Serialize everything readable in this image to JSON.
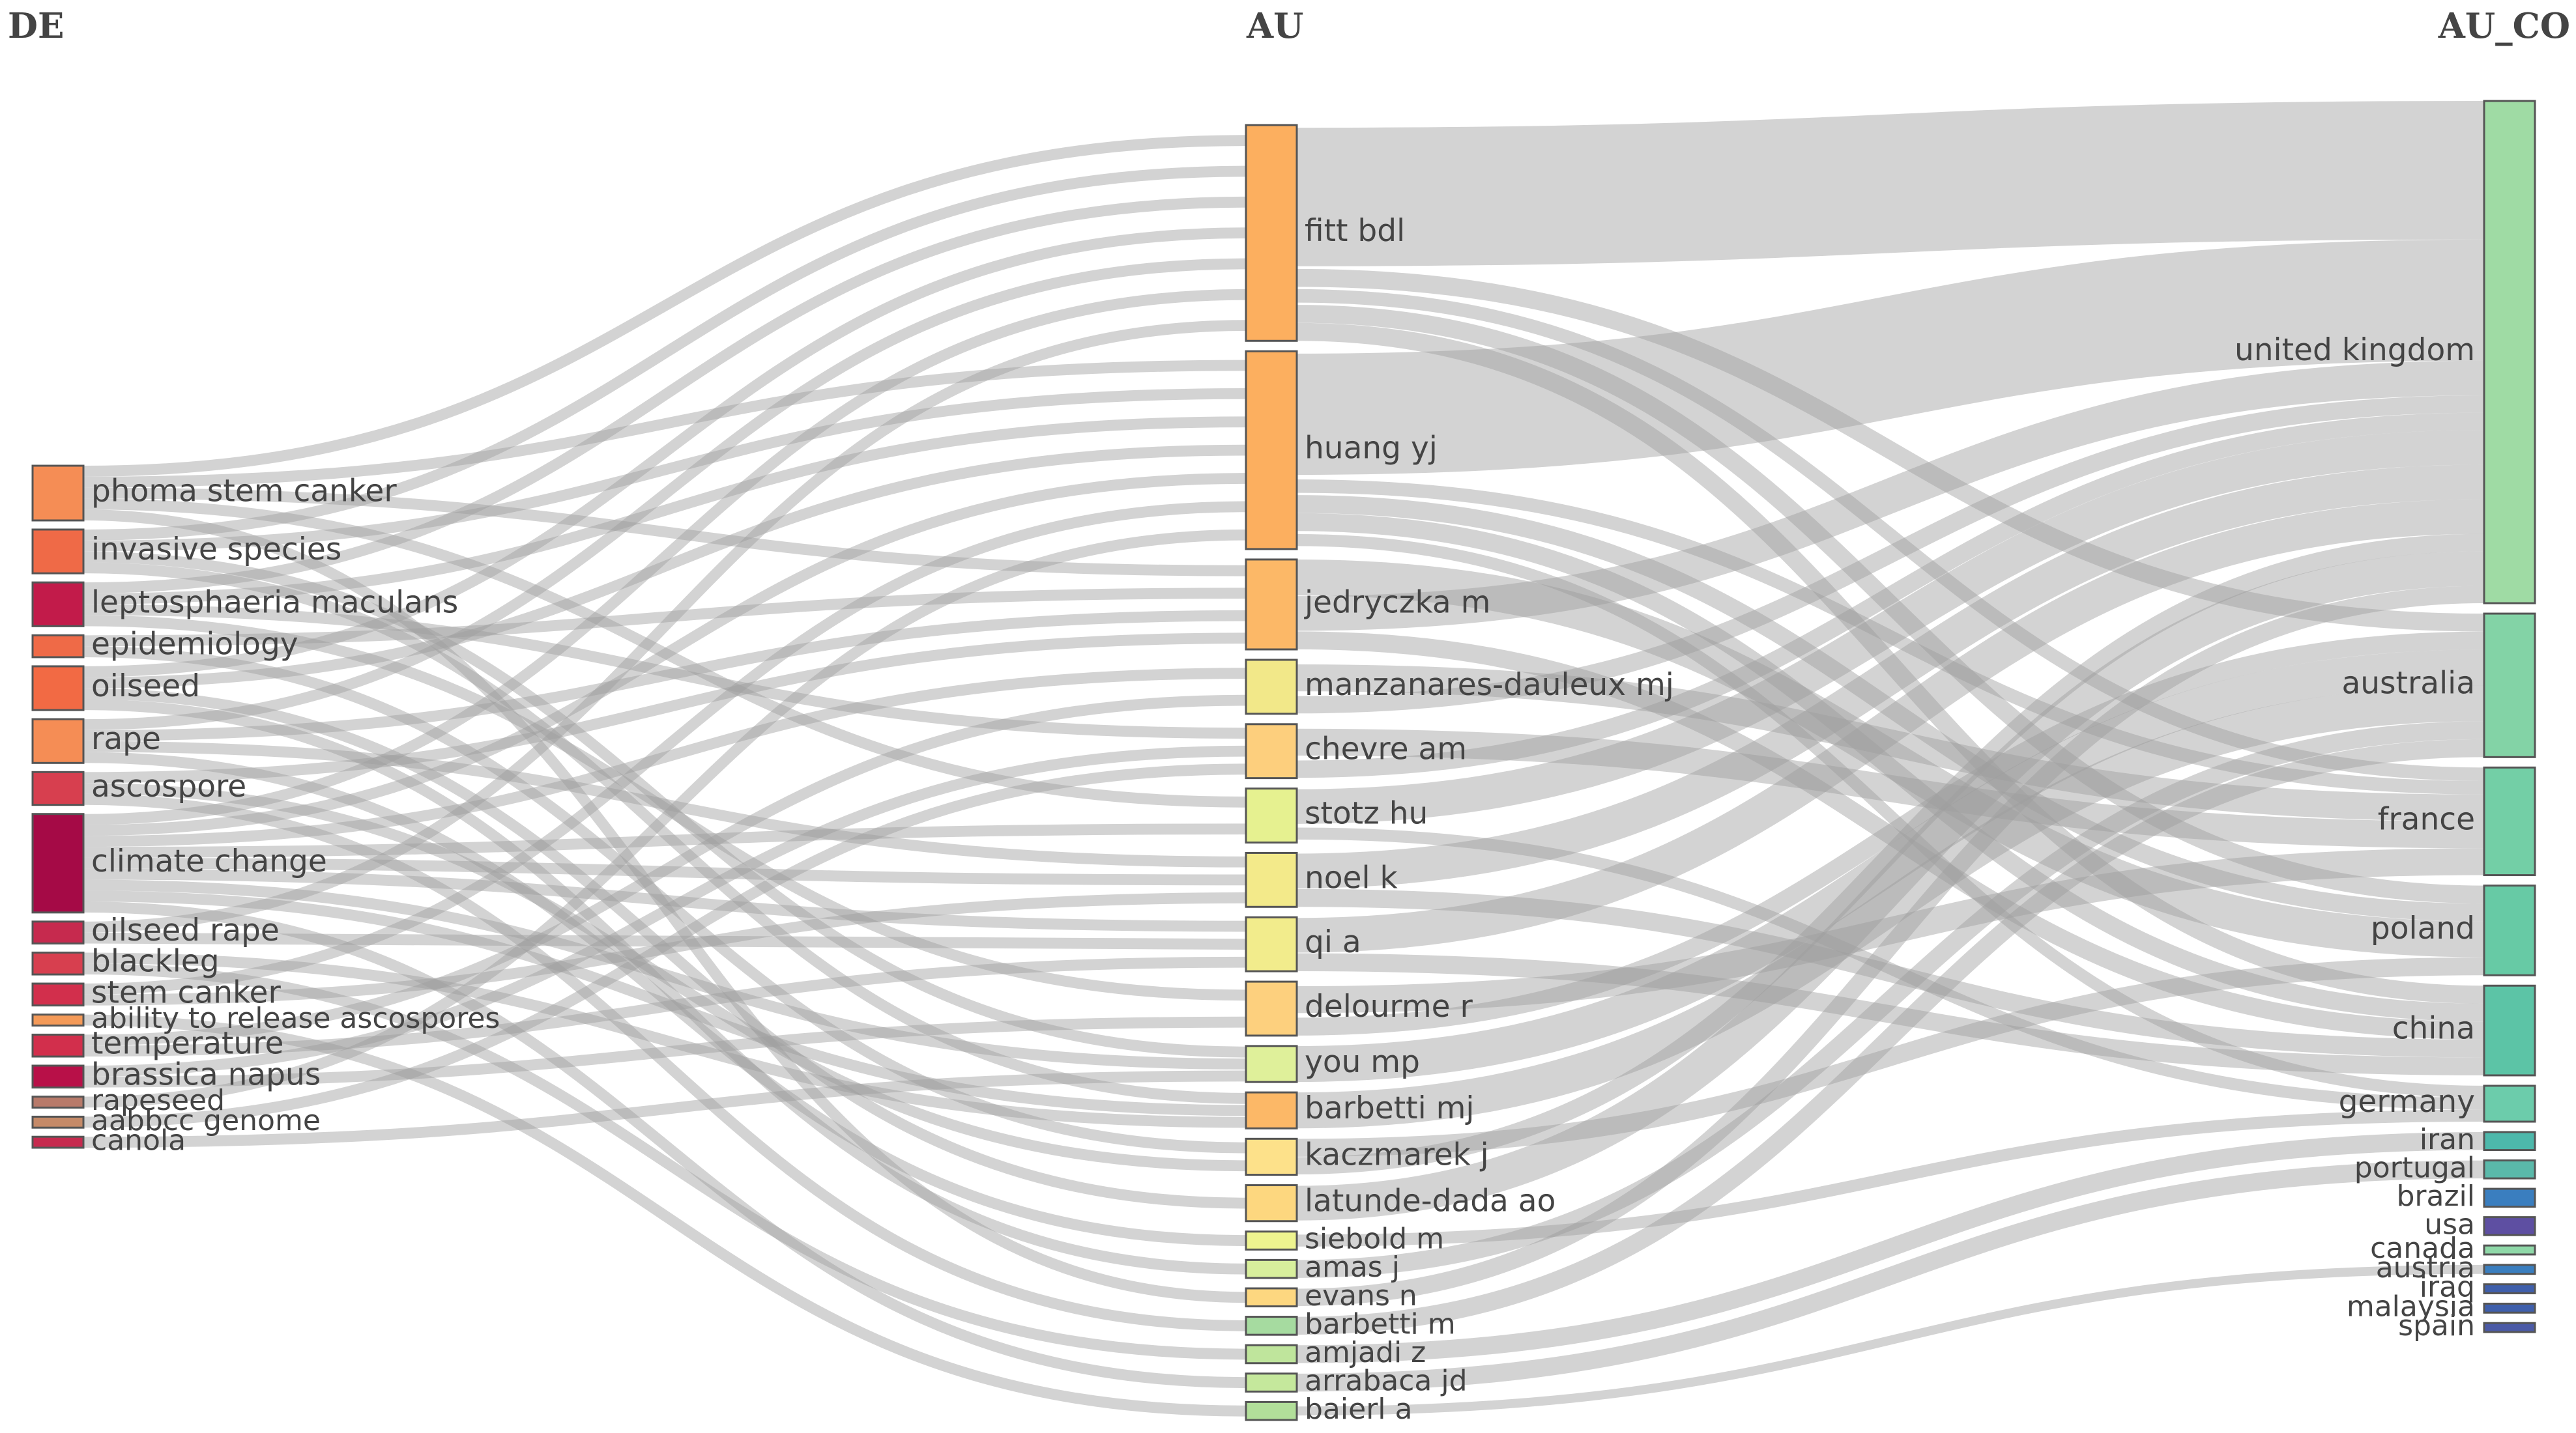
{
  "chart_data": {
    "type": "sankey",
    "columns": [
      "DE",
      "AU",
      "AU_CO"
    ],
    "nodes": [
      {
        "id": "phoma stem canker",
        "column": 0,
        "value": 5,
        "color": "#f58d55"
      },
      {
        "id": "invasive species",
        "column": 0,
        "value": 4,
        "color": "#ef6a47"
      },
      {
        "id": "leptosphaeria maculans",
        "column": 0,
        "value": 4,
        "color": "#c21b4a"
      },
      {
        "id": "epidemiology",
        "column": 0,
        "value": 2,
        "color": "#ef6a47"
      },
      {
        "id": "oilseed",
        "column": 0,
        "value": 4,
        "color": "#f26a44"
      },
      {
        "id": "rape",
        "column": 0,
        "value": 4,
        "color": "#f58d55"
      },
      {
        "id": "ascospore",
        "column": 0,
        "value": 3,
        "color": "#d73f4f"
      },
      {
        "id": "climate change",
        "column": 0,
        "value": 9,
        "color": "#a50a46"
      },
      {
        "id": "oilseed rape",
        "column": 0,
        "value": 2,
        "color": "#c62a4e"
      },
      {
        "id": "blackleg",
        "column": 0,
        "value": 2,
        "color": "#d73f4f"
      },
      {
        "id": "stem canker",
        "column": 0,
        "value": 2,
        "color": "#d22f4c"
      },
      {
        "id": "ability to release ascospores",
        "column": 0,
        "value": 1,
        "color": "#f49a58"
      },
      {
        "id": "temperature",
        "column": 0,
        "value": 2,
        "color": "#d22f4c"
      },
      {
        "id": "brassica napus",
        "column": 0,
        "value": 2,
        "color": "#b81048"
      },
      {
        "id": "rapeseed",
        "column": 0,
        "value": 1,
        "color": "#b87a6a"
      },
      {
        "id": "aabbcc genome",
        "column": 0,
        "value": 1,
        "color": "#c58a68"
      },
      {
        "id": "canola",
        "column": 0,
        "value": 1,
        "color": "#c62a4e"
      },
      {
        "id": "fitt bdl",
        "column": 1,
        "value": 12,
        "color": "#fcaf5f"
      },
      {
        "id": "huang yj",
        "column": 1,
        "value": 11,
        "color": "#fcaf5f"
      },
      {
        "id": "jedryczka m",
        "column": 1,
        "value": 5,
        "color": "#fcb867"
      },
      {
        "id": "manzanares-dauleux mj",
        "column": 1,
        "value": 3,
        "color": "#f2e889"
      },
      {
        "id": "chevre am",
        "column": 1,
        "value": 3,
        "color": "#fdcf7d"
      },
      {
        "id": "stotz hu",
        "column": 1,
        "value": 3,
        "color": "#e6f190"
      },
      {
        "id": "noel k",
        "column": 1,
        "value": 3,
        "color": "#f3ea8a"
      },
      {
        "id": "qi a",
        "column": 1,
        "value": 3,
        "color": "#f2ec8c"
      },
      {
        "id": "delourme r",
        "column": 1,
        "value": 3,
        "color": "#fdd07e"
      },
      {
        "id": "you mp",
        "column": 1,
        "value": 2,
        "color": "#dff09a"
      },
      {
        "id": "barbetti mj",
        "column": 1,
        "value": 2,
        "color": "#fcb867"
      },
      {
        "id": "kaczmarek j",
        "column": 1,
        "value": 2,
        "color": "#fde18a"
      },
      {
        "id": "latunde-dada ao",
        "column": 1,
        "value": 2,
        "color": "#fdd77f"
      },
      {
        "id": "siebold m",
        "column": 1,
        "value": 1,
        "color": "#eef48f"
      },
      {
        "id": "amas j",
        "column": 1,
        "value": 1,
        "color": "#d8ef9c"
      },
      {
        "id": "evans n",
        "column": 1,
        "value": 1,
        "color": "#fdd780"
      },
      {
        "id": "barbetti m",
        "column": 1,
        "value": 1,
        "color": "#a6dba0"
      },
      {
        "id": "amjadi z",
        "column": 1,
        "value": 1,
        "color": "#bfe59c"
      },
      {
        "id": "arrabaca jd",
        "column": 1,
        "value": 1,
        "color": "#c5e89c"
      },
      {
        "id": "baierl a",
        "column": 1,
        "value": 1,
        "color": "#b2df9a"
      },
      {
        "id": "united kingdom",
        "column": 2,
        "value": 28,
        "color": "#9fdba4"
      },
      {
        "id": "australia",
        "column": 2,
        "value": 8,
        "color": "#83d3a6"
      },
      {
        "id": "france",
        "column": 2,
        "value": 6,
        "color": "#73cfa6"
      },
      {
        "id": "poland",
        "column": 2,
        "value": 5,
        "color": "#67caa5"
      },
      {
        "id": "china",
        "column": 2,
        "value": 5,
        "color": "#5cc4a6"
      },
      {
        "id": "germany",
        "column": 2,
        "value": 2,
        "color": "#6cccab"
      },
      {
        "id": "iran",
        "column": 2,
        "value": 1,
        "color": "#4db8ab"
      },
      {
        "id": "portugal",
        "column": 2,
        "value": 1,
        "color": "#5ab9aa"
      },
      {
        "id": "brazil",
        "column": 2,
        "value": 1,
        "color": "#3a7ebf"
      },
      {
        "id": "usa",
        "column": 2,
        "value": 1,
        "color": "#5e4fa2"
      },
      {
        "id": "canada",
        "column": 2,
        "value": 0.5,
        "color": "#8fd8a8"
      },
      {
        "id": "austria",
        "column": 2,
        "value": 0.5,
        "color": "#3a7ebf"
      },
      {
        "id": "iraq",
        "column": 2,
        "value": 0.5,
        "color": "#3f5fab"
      },
      {
        "id": "malaysia",
        "column": 2,
        "value": 0.5,
        "color": "#3f5fab"
      },
      {
        "id": "spain",
        "column": 2,
        "value": 0.5,
        "color": "#4b5aa6"
      }
    ],
    "links": [
      {
        "source": "phoma stem canker",
        "target": "fitt bdl",
        "value": 1
      },
      {
        "source": "phoma stem canker",
        "target": "huang yj",
        "value": 1
      },
      {
        "source": "phoma stem canker",
        "target": "jedryczka m",
        "value": 1
      },
      {
        "source": "phoma stem canker",
        "target": "stotz hu",
        "value": 1
      },
      {
        "source": "phoma stem canker",
        "target": "evans n",
        "value": 1
      },
      {
        "source": "invasive species",
        "target": "fitt bdl",
        "value": 1
      },
      {
        "source": "invasive species",
        "target": "huang yj",
        "value": 1
      },
      {
        "source": "invasive species",
        "target": "you mp",
        "value": 1
      },
      {
        "source": "invasive species",
        "target": "barbetti mj",
        "value": 1
      },
      {
        "source": "leptosphaeria maculans",
        "target": "fitt bdl",
        "value": 1
      },
      {
        "source": "leptosphaeria maculans",
        "target": "huang yj",
        "value": 1
      },
      {
        "source": "leptosphaeria maculans",
        "target": "chevre am",
        "value": 1
      },
      {
        "source": "leptosphaeria maculans",
        "target": "delourme r",
        "value": 1
      },
      {
        "source": "epidemiology",
        "target": "jedryczka m",
        "value": 1
      },
      {
        "source": "epidemiology",
        "target": "kaczmarek j",
        "value": 1
      },
      {
        "source": "oilseed",
        "target": "fitt bdl",
        "value": 1
      },
      {
        "source": "oilseed",
        "target": "huang yj",
        "value": 1
      },
      {
        "source": "oilseed",
        "target": "latunde-dada ao",
        "value": 1
      },
      {
        "source": "oilseed",
        "target": "amas j",
        "value": 1
      },
      {
        "source": "rape",
        "target": "fitt bdl",
        "value": 1
      },
      {
        "source": "rape",
        "target": "jedryczka m",
        "value": 1
      },
      {
        "source": "rape",
        "target": "noel k",
        "value": 1
      },
      {
        "source": "rape",
        "target": "siebold m",
        "value": 1
      },
      {
        "source": "ascospore",
        "target": "jedryczka m",
        "value": 1
      },
      {
        "source": "ascospore",
        "target": "kaczmarek j",
        "value": 1
      },
      {
        "source": "ascospore",
        "target": "barbetti m",
        "value": 1
      },
      {
        "source": "climate change",
        "target": "fitt bdl",
        "value": 1
      },
      {
        "source": "climate change",
        "target": "huang yj",
        "value": 1
      },
      {
        "source": "climate change",
        "target": "manzanares-dauleux mj",
        "value": 1
      },
      {
        "source": "climate change",
        "target": "stotz hu",
        "value": 1
      },
      {
        "source": "climate change",
        "target": "noel k",
        "value": 1
      },
      {
        "source": "climate change",
        "target": "qi a",
        "value": 1
      },
      {
        "source": "climate change",
        "target": "you mp",
        "value": 1
      },
      {
        "source": "climate change",
        "target": "barbetti mj",
        "value": 1
      },
      {
        "source": "climate change",
        "target": "arrabaca jd",
        "value": 1
      },
      {
        "source": "oilseed rape",
        "target": "fitt bdl",
        "value": 1
      },
      {
        "source": "oilseed rape",
        "target": "qi a",
        "value": 1
      },
      {
        "source": "blackleg",
        "target": "barbetti mj",
        "value": 1
      },
      {
        "source": "blackleg",
        "target": "amjadi z",
        "value": 1
      },
      {
        "source": "stem canker",
        "target": "huang yj",
        "value": 1
      },
      {
        "source": "stem canker",
        "target": "noel k",
        "value": 1
      },
      {
        "source": "ability to release ascospores",
        "target": "baierl a",
        "value": 1
      },
      {
        "source": "temperature",
        "target": "manzanares-dauleux mj",
        "value": 1
      },
      {
        "source": "temperature",
        "target": "qi a",
        "value": 1
      },
      {
        "source": "brassica napus",
        "target": "chevre am",
        "value": 1
      },
      {
        "source": "brassica napus",
        "target": "delourme r",
        "value": 1
      },
      {
        "source": "rapeseed",
        "target": "huang yj",
        "value": 1
      },
      {
        "source": "aabbcc genome",
        "target": "chevre am",
        "value": 1
      },
      {
        "source": "canola",
        "target": "you mp",
        "value": 1
      },
      {
        "source": "fitt bdl",
        "target": "united kingdom",
        "value": 8
      },
      {
        "source": "fitt bdl",
        "target": "australia",
        "value": 1
      },
      {
        "source": "fitt bdl",
        "target": "france",
        "value": 1
      },
      {
        "source": "fitt bdl",
        "target": "poland",
        "value": 1
      },
      {
        "source": "fitt bdl",
        "target": "china",
        "value": 1
      },
      {
        "source": "huang yj",
        "target": "united kingdom",
        "value": 7
      },
      {
        "source": "huang yj",
        "target": "france",
        "value": 1
      },
      {
        "source": "huang yj",
        "target": "poland",
        "value": 1
      },
      {
        "source": "huang yj",
        "target": "china",
        "value": 1
      },
      {
        "source": "huang yj",
        "target": "germany",
        "value": 1
      },
      {
        "source": "jedryczka m",
        "target": "poland",
        "value": 2
      },
      {
        "source": "jedryczka m",
        "target": "united kingdom",
        "value": 2
      },
      {
        "source": "jedryczka m",
        "target": "china",
        "value": 1
      },
      {
        "source": "manzanares-dauleux mj",
        "target": "france",
        "value": 2
      },
      {
        "source": "manzanares-dauleux mj",
        "target": "united kingdom",
        "value": 1
      },
      {
        "source": "chevre am",
        "target": "france",
        "value": 2
      },
      {
        "source": "chevre am",
        "target": "united kingdom",
        "value": 1
      },
      {
        "source": "stotz hu",
        "target": "united kingdom",
        "value": 2
      },
      {
        "source": "stotz hu",
        "target": "germany",
        "value": 1
      },
      {
        "source": "noel k",
        "target": "united kingdom",
        "value": 2
      },
      {
        "source": "noel k",
        "target": "china",
        "value": 1
      },
      {
        "source": "qi a",
        "target": "united kingdom",
        "value": 2
      },
      {
        "source": "qi a",
        "target": "china",
        "value": 1
      },
      {
        "source": "delourme r",
        "target": "france",
        "value": 2
      },
      {
        "source": "delourme r",
        "target": "australia",
        "value": 1
      },
      {
        "source": "you mp",
        "target": "australia",
        "value": 2
      },
      {
        "source": "barbetti mj",
        "target": "australia",
        "value": 2
      },
      {
        "source": "kaczmarek j",
        "target": "poland",
        "value": 1
      },
      {
        "source": "kaczmarek j",
        "target": "united kingdom",
        "value": 1
      },
      {
        "source": "latunde-dada ao",
        "target": "united kingdom",
        "value": 2
      },
      {
        "source": "siebold m",
        "target": "germany",
        "value": 1
      },
      {
        "source": "amas j",
        "target": "australia",
        "value": 1
      },
      {
        "source": "evans n",
        "target": "united kingdom",
        "value": 1
      },
      {
        "source": "barbetti m",
        "target": "australia",
        "value": 1
      },
      {
        "source": "amjadi z",
        "target": "iran",
        "value": 1
      },
      {
        "source": "arrabaca jd",
        "target": "portugal",
        "value": 1
      },
      {
        "source": "baierl a",
        "target": "austria",
        "value": 1
      }
    ]
  }
}
